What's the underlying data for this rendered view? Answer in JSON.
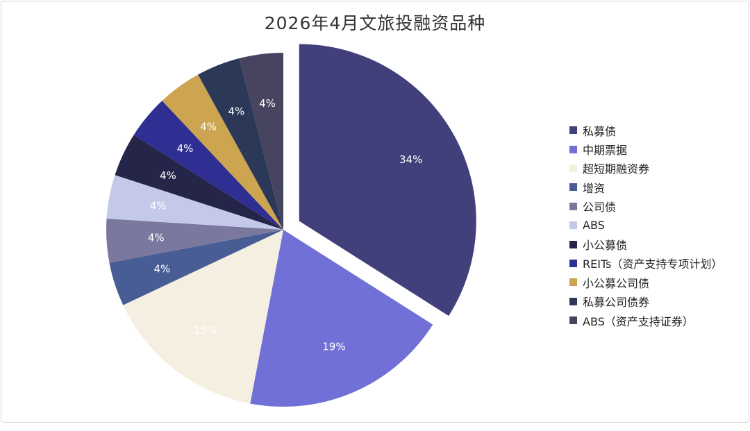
{
  "chart_data": {
    "type": "pie",
    "title": "2026年4月文旅投融资品种",
    "categories": [
      "私募债",
      "中期票据",
      "超短期融资券",
      "增资",
      "公司债",
      "ABS",
      "小公募债",
      "REITs（资产支持专项计划）",
      "小公募公司债",
      "私募公司债券",
      "ABS（资产支持证券）"
    ],
    "values": [
      34,
      19,
      15,
      4,
      4,
      4,
      4,
      4,
      4,
      4,
      4
    ],
    "labels": [
      "34%",
      "19%",
      "15%",
      "4%",
      "4%",
      "4%",
      "4%",
      "4%",
      "4%",
      "4%",
      "4%"
    ],
    "colors": [
      "#42407a",
      "#7070d6",
      "#f5efe2",
      "#475d94",
      "#7a789e",
      "#c4c9ea",
      "#25254a",
      "#2e2e93",
      "#cda450",
      "#2c3858",
      "#46445f"
    ],
    "label_colors": [
      "#ffffff",
      "#ffffff",
      "#ffffff",
      "#ffffff",
      "#ffffff",
      "#ffffff",
      "#ffffff",
      "#ffffff",
      "#ffffff",
      "#ffffff",
      "#ffffff"
    ],
    "exploded": [
      "私募债"
    ],
    "legend_position": "right"
  }
}
